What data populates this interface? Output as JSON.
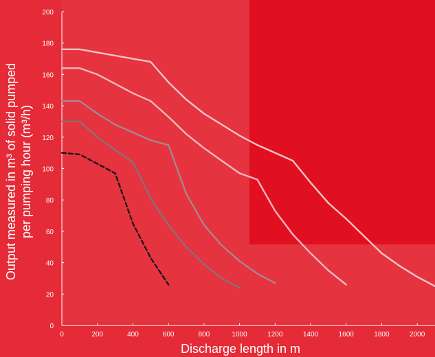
{
  "chart_data": {
    "type": "line",
    "xlabel": "Discharge  length in m",
    "ylabel_line1": "Output measured in m³ of solid pumped",
    "ylabel_line2": "per pumping hour (m³/h)",
    "xlim": [
      0,
      2100
    ],
    "ylim": [
      0,
      200
    ],
    "x_ticks": [
      "0",
      "200",
      "400",
      "600",
      "800",
      "1000",
      "1200",
      "1400",
      "1600",
      "1800",
      "2000"
    ],
    "y_ticks": [
      "0",
      "20",
      "40",
      "60",
      "80",
      "100",
      "120",
      "140",
      "160",
      "180",
      "200"
    ],
    "grid": false,
    "series": [
      {
        "color": "#f4c4c8",
        "style": "solid",
        "x": [
          0,
          100,
          200,
          300,
          400,
          500,
          600,
          700,
          800,
          900,
          1000,
          1100,
          1200,
          1300,
          1400,
          1500,
          1600,
          1700,
          1800,
          1900,
          2000,
          2100
        ],
        "y": [
          176,
          176,
          174,
          172,
          170,
          168,
          155,
          144,
          135,
          128,
          121,
          115,
          110,
          105,
          91,
          78,
          68,
          57,
          46,
          38,
          31,
          25
        ]
      },
      {
        "color": "#f2b8be",
        "style": "solid",
        "x": [
          0,
          100,
          200,
          300,
          400,
          500,
          600,
          700,
          800,
          900,
          1000,
          1100,
          1200,
          1300,
          1400,
          1500,
          1600
        ],
        "y": [
          164,
          164,
          160,
          154,
          148,
          143,
          133,
          122,
          113,
          105,
          97,
          93,
          73,
          58,
          46,
          35,
          26
        ]
      },
      {
        "color": "#a8868a",
        "style": "solid",
        "x": [
          0,
          100,
          200,
          300,
          400,
          500,
          600,
          700,
          800,
          900,
          1000,
          1100,
          1200
        ],
        "y": [
          143,
          143,
          135,
          128,
          123,
          118,
          115,
          84,
          64,
          51,
          41,
          33,
          27
        ]
      },
      {
        "color": "#8a7074",
        "style": "solid",
        "x": [
          0,
          100,
          200,
          300,
          400,
          500,
          600,
          700,
          800,
          900,
          1000
        ],
        "y": [
          130,
          130,
          120,
          112,
          104,
          81,
          64,
          50,
          39,
          30,
          24
        ]
      },
      {
        "color": "#1e1416",
        "style": "dashed",
        "x": [
          0,
          100,
          200,
          300,
          400,
          500,
          600
        ],
        "y": [
          110,
          109,
          103,
          97,
          65,
          43,
          26
        ]
      }
    ]
  }
}
